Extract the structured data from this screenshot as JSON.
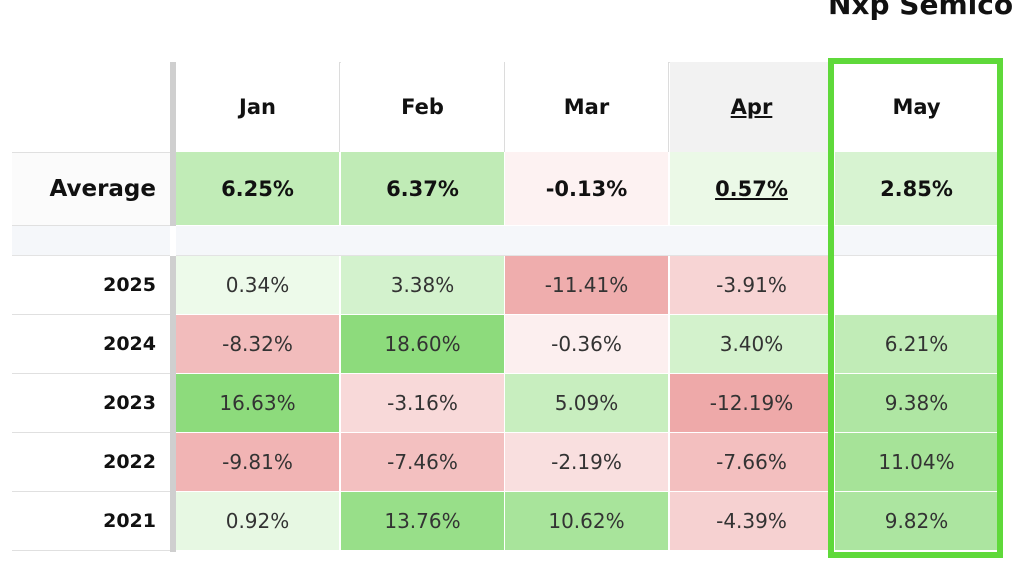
{
  "title": "Nxp Semico",
  "chart_data": {
    "type": "table",
    "title": "Nxp Semico",
    "columns": [
      "Jan",
      "Feb",
      "Mar",
      "Apr",
      "May"
    ],
    "highlighted_column": "May",
    "hovered_column": "Apr",
    "average": {
      "label": "Average",
      "values": [
        "6.25%",
        "6.37%",
        "-0.13%",
        "0.57%",
        "2.85%"
      ]
    },
    "rows": [
      {
        "label": "2025",
        "values": [
          "0.34%",
          "3.38%",
          "-11.41%",
          "-3.91%",
          ""
        ]
      },
      {
        "label": "2024",
        "values": [
          "-8.32%",
          "18.60%",
          "-0.36%",
          "3.40%",
          "6.21%"
        ]
      },
      {
        "label": "2023",
        "values": [
          "16.63%",
          "-3.16%",
          "5.09%",
          "-12.19%",
          "9.38%"
        ]
      },
      {
        "label": "2022",
        "values": [
          "-9.81%",
          "-7.46%",
          "-2.19%",
          "-7.66%",
          "11.04%"
        ]
      },
      {
        "label": "2021",
        "values": [
          "0.92%",
          "13.76%",
          "10.62%",
          "-4.39%",
          "9.82%"
        ]
      }
    ],
    "colors": {
      "positive_strong": "#8fdc7e",
      "negative_strong": "#eb9a9a",
      "highlight_border": "#5fd93a"
    }
  }
}
